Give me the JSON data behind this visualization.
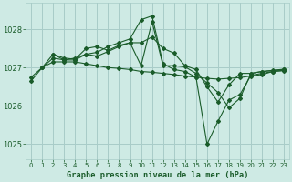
{
  "background_color": "#ceeae4",
  "grid_color": "#a8ccc8",
  "line_color": "#1a5c2a",
  "title": "Graphe pression niveau de la mer (hPa)",
  "xlim": [
    -0.5,
    23.5
  ],
  "ylim": [
    1024.6,
    1028.7
  ],
  "yticks": [
    1025,
    1026,
    1027,
    1028
  ],
  "xticks": [
    0,
    1,
    2,
    3,
    4,
    5,
    6,
    7,
    8,
    9,
    10,
    11,
    12,
    13,
    14,
    15,
    16,
    17,
    18,
    19,
    20,
    21,
    22,
    23
  ],
  "series": [
    {
      "x": [
        0,
        1,
        2,
        3,
        4,
        5,
        6,
        7,
        8,
        9,
        10,
        11,
        12,
        13,
        14,
        15,
        16,
        17,
        18,
        19,
        20,
        21,
        22,
        23
      ],
      "y": [
        1026.75,
        1027.0,
        1027.15,
        1027.15,
        1027.15,
        1027.1,
        1027.05,
        1027.0,
        1026.98,
        1026.95,
        1026.9,
        1026.88,
        1026.85,
        1026.82,
        1026.78,
        1026.75,
        1026.72,
        1026.7,
        1026.72,
        1026.74,
        1026.78,
        1026.82,
        1026.9,
        1026.92
      ]
    },
    {
      "x": [
        0,
        1,
        2,
        3,
        4,
        5,
        6,
        7,
        8,
        9,
        10,
        11,
        12,
        13,
        14,
        15,
        16,
        17,
        18,
        19,
        20,
        21,
        22,
        23
      ],
      "y": [
        1026.65,
        1027.0,
        1027.25,
        1027.2,
        1027.25,
        1027.35,
        1027.4,
        1027.55,
        1027.65,
        1027.75,
        1028.25,
        1028.35,
        1027.1,
        1026.95,
        1026.9,
        1026.75,
        1025.0,
        1025.6,
        1026.15,
        1026.3,
        1026.8,
        1026.85,
        1026.9,
        1026.93
      ]
    },
    {
      "x": [
        1,
        2,
        3,
        4,
        5,
        6,
        7,
        8,
        9,
        10,
        11,
        12,
        13,
        14,
        15,
        16,
        17,
        18,
        19,
        20,
        21,
        22,
        23
      ],
      "y": [
        1027.0,
        1027.35,
        1027.25,
        1027.22,
        1027.5,
        1027.55,
        1027.45,
        1027.58,
        1027.65,
        1027.05,
        1028.2,
        1027.05,
        1027.05,
        1027.02,
        1026.85,
        1026.6,
        1026.35,
        1025.95,
        1026.2,
        1026.85,
        1026.9,
        1026.92,
        1026.95
      ]
    },
    {
      "x": [
        2,
        3,
        4,
        5,
        6,
        7,
        8,
        9,
        10,
        11,
        12,
        13,
        14,
        15,
        16,
        17,
        18,
        19,
        20,
        21,
        22,
        23
      ],
      "y": [
        1027.35,
        1027.2,
        1027.2,
        1027.35,
        1027.3,
        1027.42,
        1027.55,
        1027.65,
        1027.65,
        1027.8,
        1027.5,
        1027.38,
        1027.05,
        1026.95,
        1026.5,
        1026.1,
        1026.55,
        1026.85,
        1026.85,
        1026.9,
        1026.93,
        1026.96
      ]
    }
  ]
}
